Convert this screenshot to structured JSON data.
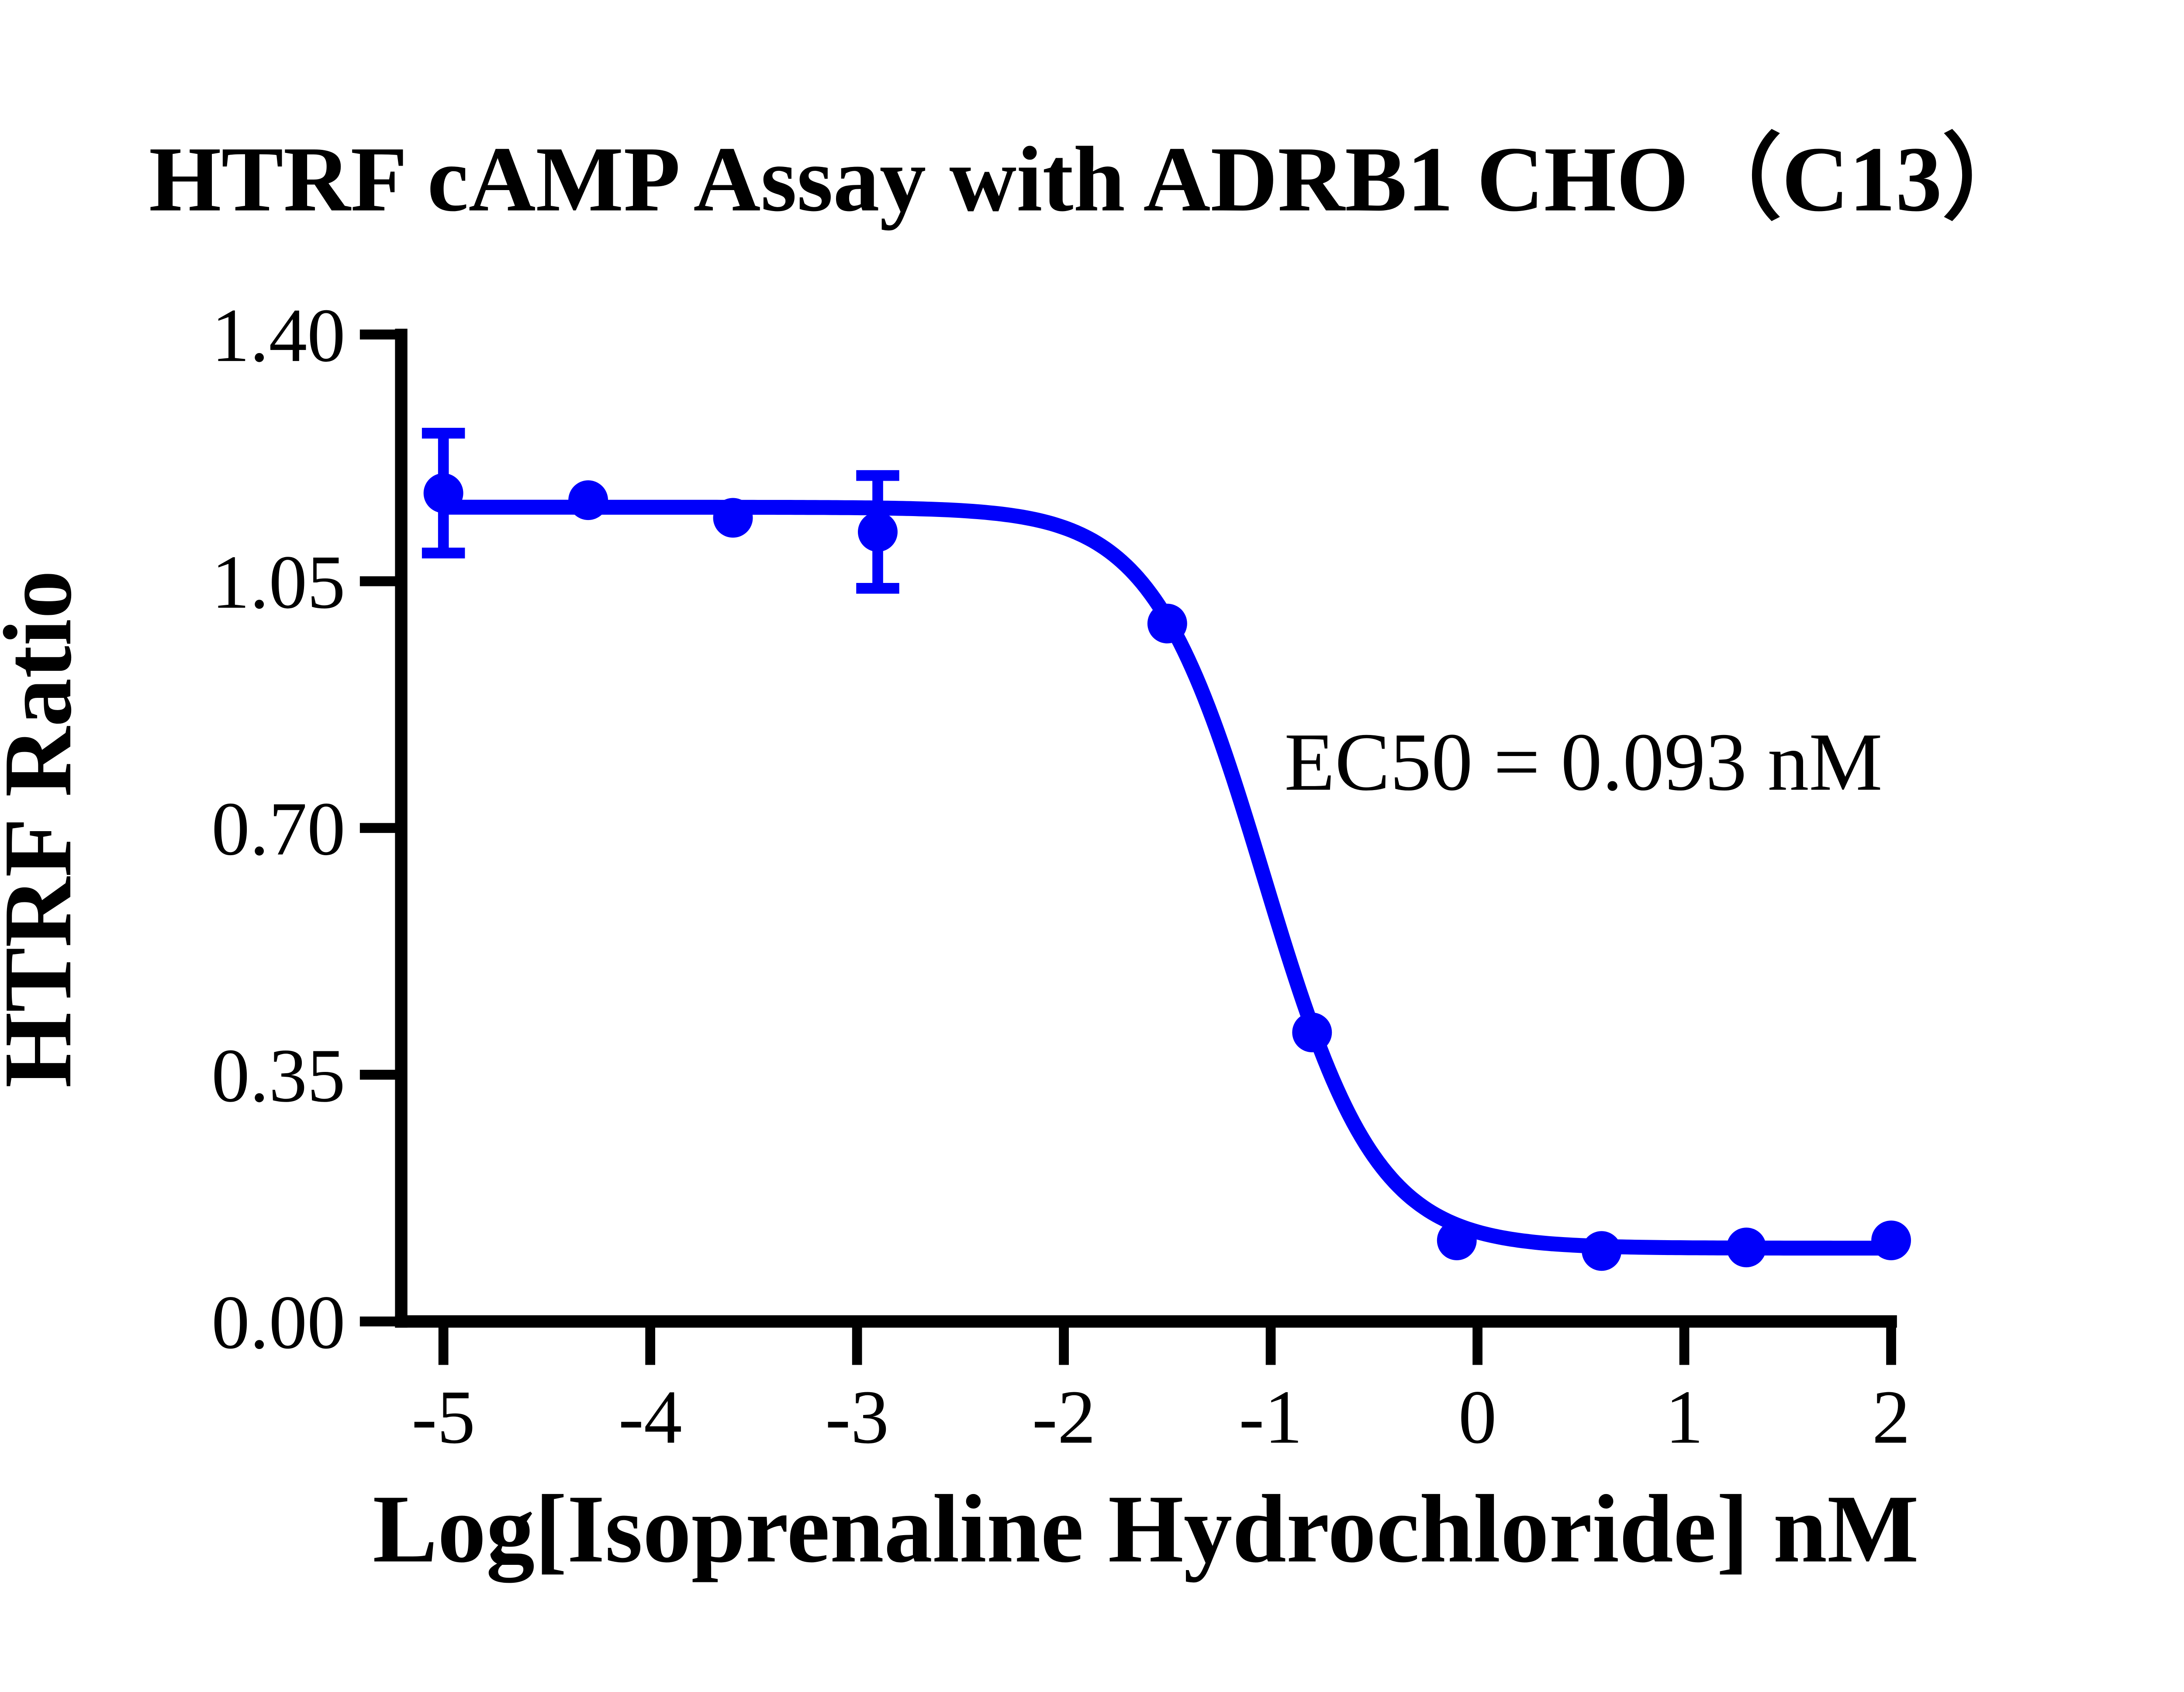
{
  "chart_data": {
    "type": "scatter",
    "title": "HTRF cAMP Assay with ADRB1 CHO（C13）",
    "xlabel": "Log[Isoprenaline Hydrochloride] nM",
    "ylabel": "HTRF Ratio",
    "annotation": "EC50 = 0.093 nM",
    "ec50_nM": 0.093,
    "axis_color": "#000000",
    "background_color": "#FFFFFF",
    "grid": false,
    "legend": false,
    "xlim": [
      -5.25,
      2.05
    ],
    "ylim": [
      0.0,
      1.4
    ],
    "x_ticks": [
      -5,
      -4,
      -3,
      -2,
      -1,
      0,
      1,
      2
    ],
    "x_tick_labels": [
      "-5",
      "-4",
      "-3",
      "-2",
      "-1",
      "0",
      "1",
      "2"
    ],
    "y_ticks": [
      0.0,
      0.35,
      0.7,
      1.05,
      1.4
    ],
    "y_tick_labels": [
      "0.00",
      "0.35",
      "0.70",
      "1.05",
      "1.40"
    ],
    "series": [
      {
        "name": "Isoprenaline Hydrochloride",
        "color": "#0000FA",
        "marker": "circle",
        "points": [
          {
            "x": -5.0,
            "y": 1.175,
            "err": 0.085
          },
          {
            "x": -4.3,
            "y": 1.165
          },
          {
            "x": -3.6,
            "y": 1.14
          },
          {
            "x": -2.9,
            "y": 1.12,
            "err": 0.08
          },
          {
            "x": -1.5,
            "y": 0.99
          },
          {
            "x": -0.8,
            "y": 0.41
          },
          {
            "x": -0.1,
            "y": 0.115
          },
          {
            "x": 0.6,
            "y": 0.1
          },
          {
            "x": 1.3,
            "y": 0.105
          },
          {
            "x": 2.0,
            "y": 0.115
          }
        ],
        "fit": {
          "model": "four-parameter logistic (descending)",
          "top": 1.155,
          "bottom": 0.104,
          "logEC50": -1.0315,
          "hill_slope": 1.6,
          "x_range": [
            -5.0,
            2.0
          ]
        }
      }
    ]
  }
}
